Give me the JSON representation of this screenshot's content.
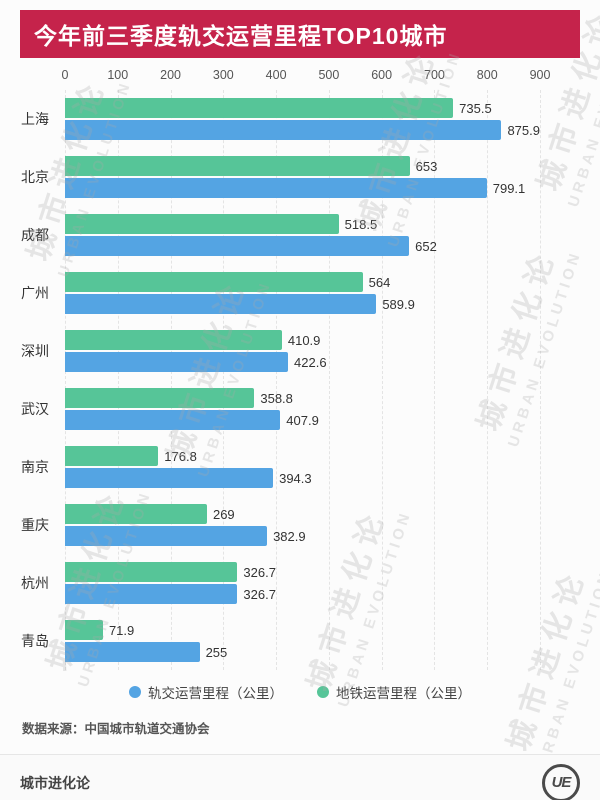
{
  "title": "今年前三季度轨交运营里程TOP10城市",
  "colors": {
    "title_bg": "#c5234b",
    "series_blue": "#54a4e3",
    "series_green": "#56c598"
  },
  "chart_data": {
    "type": "bar",
    "orientation": "horizontal",
    "title": "今年前三季度轨交运营里程TOP10城市",
    "categories": [
      "上海",
      "北京",
      "成都",
      "广州",
      "深圳",
      "武汉",
      "南京",
      "重庆",
      "杭州",
      "青岛"
    ],
    "series": [
      {
        "name": "轨交运营里程（公里）",
        "color": "#54a4e3",
        "values": [
          875.9,
          799.1,
          652,
          589.9,
          422.6,
          407.9,
          394.3,
          382.9,
          326.7,
          255
        ]
      },
      {
        "name": "地铁运营里程（公里）",
        "color": "#56c598",
        "values": [
          735.5,
          653,
          518.5,
          564,
          410.9,
          358.8,
          176.8,
          269,
          326.7,
          71.9
        ]
      }
    ],
    "bar_order_top_to_bottom": [
      "地铁运营里程（公里）",
      "轨交运营里程（公里）"
    ],
    "xlim": [
      0,
      900
    ],
    "x_ticks": [
      0,
      100,
      200,
      300,
      400,
      500,
      600,
      700,
      800,
      900
    ],
    "grid": true,
    "legend_position": "bottom"
  },
  "footer": {
    "source": "数据来源：中国城市轨道交通协会",
    "brand": "城市进化论",
    "logo_text": "UE"
  },
  "watermark": {
    "cn": "城市进化论",
    "en": "URBAN EVOLUTION"
  }
}
